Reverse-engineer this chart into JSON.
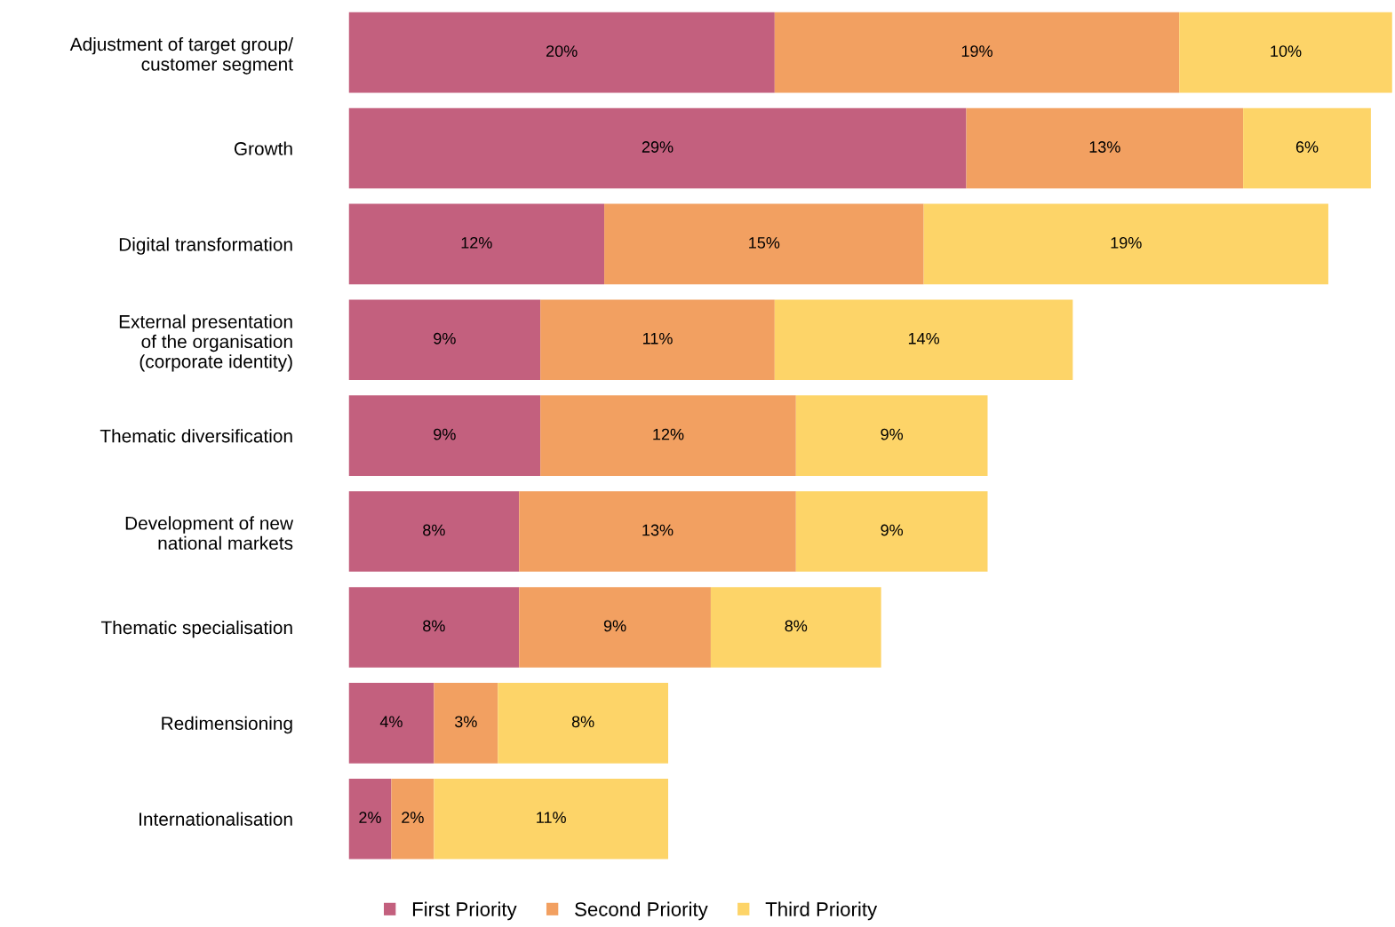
{
  "chart_data": {
    "type": "bar",
    "orientation": "horizontal",
    "stacked": true,
    "legend": "bottom",
    "grid": false,
    "tick_labels": "y",
    "categories": [
      "Adjustment of target group/\ncustomer segment",
      "Growth",
      "Digital transformation",
      "External presentation\nof the organisation\n(corporate identity)",
      "Thematic diversification",
      "Development of new\nnational markets",
      "Thematic specialisation",
      "Redimensioning",
      "Internationalisation"
    ],
    "series": [
      {
        "name": "First Priority",
        "color": "#c3607e",
        "values": [
          20,
          29,
          12,
          9,
          9,
          8,
          8,
          4,
          2
        ],
        "value_labels": [
          "20%",
          "29%",
          "12%",
          "9%",
          "9%",
          "8%",
          "8%",
          "4%",
          "2%"
        ]
      },
      {
        "name": "Second Priority",
        "color": "#f2a061",
        "values": [
          19,
          13,
          15,
          11,
          12,
          13,
          9,
          3,
          2
        ],
        "value_labels": [
          "19%",
          "13%",
          "15%",
          "11%",
          "12%",
          "13%",
          "9%",
          "3%",
          "2%"
        ]
      },
      {
        "name": "Third Priority",
        "color": "#fdd468",
        "values": [
          10,
          6,
          19,
          14,
          9,
          9,
          8,
          8,
          11
        ],
        "value_labels": [
          "10%",
          "6%",
          "19%",
          "14%",
          "9%",
          "9%",
          "8%",
          "8%",
          "11%"
        ]
      }
    ]
  }
}
